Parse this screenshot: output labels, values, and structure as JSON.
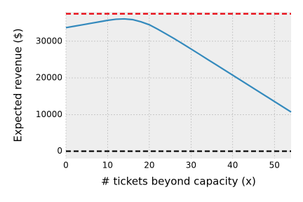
{
  "chart_data": {
    "type": "line",
    "x_label": "# tickets beyond capacity (x)",
    "y_label": "Expected revenue ($)",
    "x": [
      0,
      2,
      4,
      6,
      8,
      10,
      12,
      14,
      16,
      18,
      20,
      22,
      24,
      26,
      28,
      30,
      32,
      34,
      36,
      38,
      40,
      42,
      44,
      46,
      48,
      50,
      52,
      54
    ],
    "values": [
      33700,
      34100,
      34500,
      34900,
      35300,
      35700,
      36000,
      36100,
      35900,
      35300,
      34500,
      33300,
      32000,
      30700,
      29300,
      27900,
      26470,
      25030,
      23600,
      22170,
      20730,
      19300,
      17870,
      16430,
      15000,
      13570,
      12130,
      10700
    ],
    "color": "#348abd",
    "hlines": [
      {
        "value": 37500,
        "color": "#e8000b"
      },
      {
        "value": 0,
        "color": "#000000"
      }
    ],
    "xlim": [
      0,
      54
    ],
    "ylim": [
      -2000,
      38000
    ],
    "xticks": [
      0,
      10,
      20,
      30,
      40,
      50
    ],
    "yticks": [
      0,
      10000,
      20000,
      30000
    ],
    "grid": true
  }
}
